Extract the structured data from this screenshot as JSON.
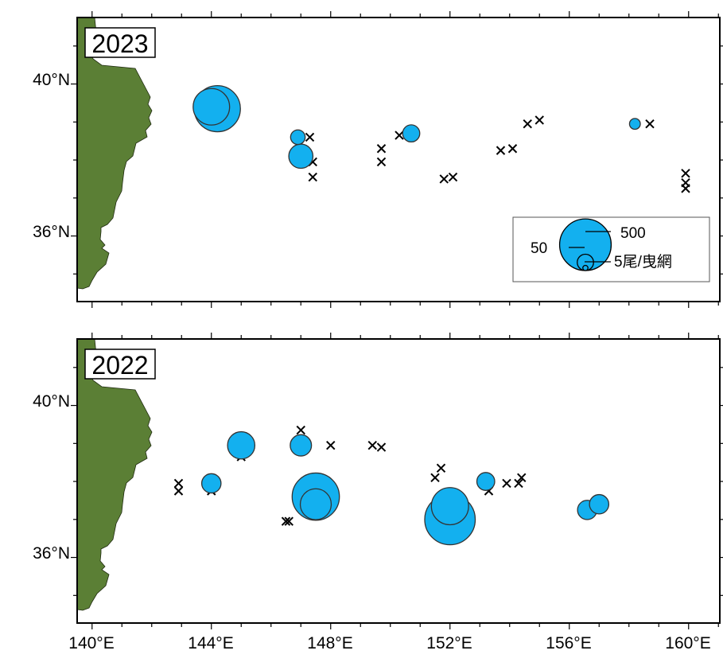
{
  "colors": {
    "land": "#5b7f35",
    "land_stroke": "#1f2a10",
    "catch_fill": "#13b0ef",
    "catch_stroke": "#333333",
    "frame": "#000000"
  },
  "axes": {
    "lon_labels": [
      "140°E",
      "144°E",
      "148°E",
      "152°E",
      "156°E",
      "160°E"
    ],
    "lat_labels": [
      "40°N",
      "36°N"
    ]
  },
  "legend": {
    "labels": [
      "500",
      "50",
      "5尾/曳網"
    ],
    "reference_values": [
      500,
      50,
      5
    ]
  },
  "panels": [
    {
      "year": "2023",
      "catches": [
        {
          "lon": 144.0,
          "lat": 39.4,
          "value": 250
        },
        {
          "lon": 144.2,
          "lat": 39.35,
          "value": 400
        },
        {
          "lon": 146.9,
          "lat": 38.6,
          "value": 40
        },
        {
          "lon": 147.0,
          "lat": 38.1,
          "value": 110
        },
        {
          "lon": 150.7,
          "lat": 38.7,
          "value": 55
        },
        {
          "lon": 158.2,
          "lat": 38.95,
          "value": 22
        }
      ],
      "zero_catch": [
        [
          147.3,
          38.6
        ],
        [
          147.4,
          37.95
        ],
        [
          147.4,
          37.55
        ],
        [
          149.7,
          38.3
        ],
        [
          149.7,
          37.95
        ],
        [
          150.3,
          38.65
        ],
        [
          151.8,
          37.5
        ],
        [
          152.1,
          37.55
        ],
        [
          153.7,
          38.25
        ],
        [
          154.1,
          38.3
        ],
        [
          154.6,
          38.95
        ],
        [
          155.0,
          39.05
        ],
        [
          158.7,
          38.95
        ],
        [
          159.9,
          37.65
        ],
        [
          159.9,
          37.4
        ],
        [
          159.9,
          37.25
        ]
      ]
    },
    {
      "year": "2022",
      "catches": [
        {
          "lon": 144.0,
          "lat": 37.95,
          "value": 70
        },
        {
          "lon": 145.0,
          "lat": 38.95,
          "value": 140
        },
        {
          "lon": 147.0,
          "lat": 38.95,
          "value": 85
        },
        {
          "lon": 147.5,
          "lat": 37.6,
          "value": 420
        },
        {
          "lon": 147.5,
          "lat": 37.4,
          "value": 180
        },
        {
          "lon": 152.0,
          "lat": 37.0,
          "value": 480
        },
        {
          "lon": 152.0,
          "lat": 37.35,
          "value": 260
        },
        {
          "lon": 153.2,
          "lat": 38.0,
          "value": 60
        },
        {
          "lon": 156.6,
          "lat": 37.25,
          "value": 70
        },
        {
          "lon": 157.0,
          "lat": 37.4,
          "value": 70
        }
      ],
      "zero_catch": [
        [
          142.9,
          37.95
        ],
        [
          142.9,
          37.75
        ],
        [
          144.0,
          37.75
        ],
        [
          145.0,
          38.65
        ],
        [
          147.0,
          39.35
        ],
        [
          148.0,
          38.95
        ],
        [
          149.4,
          38.95
        ],
        [
          149.7,
          38.9
        ],
        [
          151.5,
          38.1
        ],
        [
          151.7,
          38.35
        ],
        [
          153.3,
          37.75
        ],
        [
          153.9,
          37.95
        ],
        [
          154.3,
          37.95
        ],
        [
          154.4,
          38.1
        ],
        [
          146.5,
          36.95
        ],
        [
          146.6,
          36.95
        ]
      ]
    }
  ]
}
